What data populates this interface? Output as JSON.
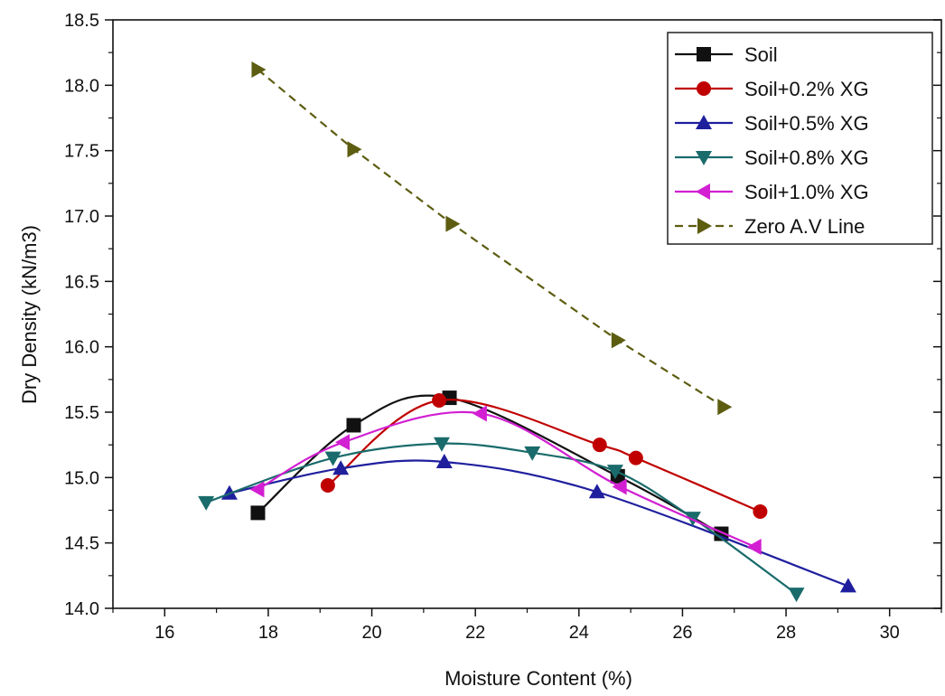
{
  "chart_data": {
    "type": "line",
    "title": "",
    "xlabel": "Moisture Content (%)",
    "ylabel": "Dry Density (kN/m3)",
    "xlim": [
      15,
      31
    ],
    "ylim": [
      14.0,
      18.5
    ],
    "x_ticks": [
      "16",
      "18",
      "20",
      "22",
      "24",
      "26",
      "28",
      "30"
    ],
    "y_ticks": [
      "14.0",
      "14.5",
      "15.0",
      "15.5",
      "16.0",
      "16.5",
      "17.0",
      "17.5",
      "18.0",
      "18.5"
    ],
    "grid": false,
    "legend_position": "top-right",
    "series": [
      {
        "name": "Soil",
        "color": "#111111",
        "marker": "square",
        "line_style": "solid",
        "smooth": true,
        "points": [
          [
            17.8,
            14.73
          ],
          [
            19.65,
            15.4
          ],
          [
            21.5,
            15.61
          ],
          [
            24.75,
            15.01
          ],
          [
            26.75,
            14.57
          ]
        ]
      },
      {
        "name": "Soil+0.2% XG",
        "color": "#c00000",
        "marker": "circle",
        "line_style": "solid",
        "smooth": true,
        "points": [
          [
            19.15,
            14.94
          ],
          [
            21.3,
            15.59
          ],
          [
            24.4,
            15.25
          ],
          [
            25.1,
            15.15
          ],
          [
            27.5,
            14.74
          ]
        ]
      },
      {
        "name": "Soil+0.5% XG",
        "color": "#1f1f9e",
        "marker": "triangle-up",
        "line_style": "solid",
        "smooth": true,
        "points": [
          [
            17.25,
            14.88
          ],
          [
            19.4,
            15.07
          ],
          [
            21.4,
            15.12
          ],
          [
            24.35,
            14.89
          ],
          [
            29.2,
            14.17
          ]
        ]
      },
      {
        "name": "Soil+0.8% XG",
        "color": "#1a6b6b",
        "marker": "triangle-down",
        "line_style": "solid",
        "smooth": true,
        "points": [
          [
            16.8,
            14.81
          ],
          [
            19.25,
            15.15
          ],
          [
            21.35,
            15.26
          ],
          [
            23.1,
            15.19
          ],
          [
            24.7,
            15.05
          ],
          [
            26.2,
            14.69
          ],
          [
            28.2,
            14.11
          ]
        ]
      },
      {
        "name": "Soil+1.0% XG",
        "color": "#d21fd2",
        "marker": "triangle-left",
        "line_style": "solid",
        "smooth": true,
        "points": [
          [
            17.8,
            14.91
          ],
          [
            19.45,
            15.27
          ],
          [
            22.1,
            15.49
          ],
          [
            24.8,
            14.93
          ],
          [
            27.4,
            14.47
          ]
        ]
      },
      {
        "name": "Zero A.V Line",
        "color": "#5d5d12",
        "marker": "triangle-right",
        "line_style": "dashed",
        "smooth": false,
        "points": [
          [
            17.8,
            18.12
          ],
          [
            19.65,
            17.51
          ],
          [
            21.55,
            16.94
          ],
          [
            24.75,
            16.05
          ],
          [
            26.8,
            15.54
          ]
        ]
      }
    ]
  }
}
